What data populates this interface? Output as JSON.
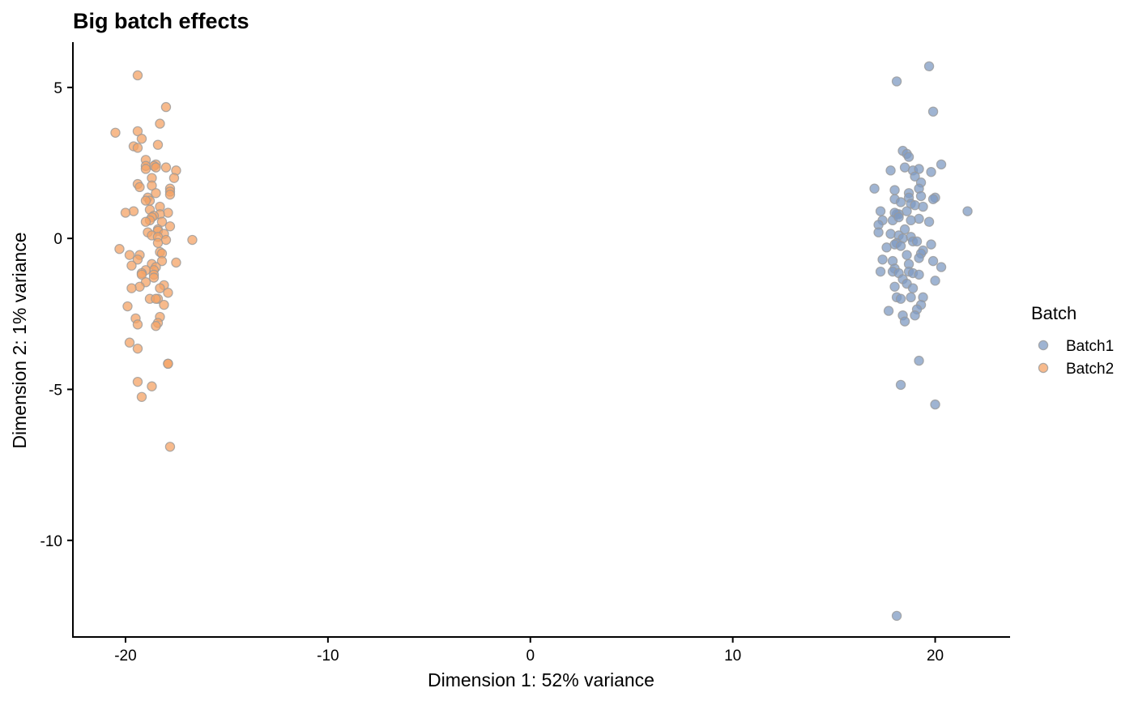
{
  "chart_data": {
    "type": "scatter",
    "title": "Big batch effects",
    "xlabel": "Dimension 1: 52% variance",
    "ylabel": "Dimension 2: 1% variance",
    "xlim": [
      -22.6,
      23.7
    ],
    "ylim": [
      -13.2,
      6.5
    ],
    "xticks": [
      -20,
      -10,
      0,
      10,
      20
    ],
    "xtick_labels": [
      "-20",
      "-10",
      "0",
      "10",
      "20"
    ],
    "yticks": [
      -10,
      -5,
      0,
      5
    ],
    "ytick_labels": [
      "-10",
      "-5",
      "0",
      "5"
    ],
    "grid": false,
    "legend": {
      "title": "Batch",
      "placement": "right"
    },
    "series": [
      {
        "name": "Batch1",
        "color": "#7F9BC3",
        "points": [
          [
            19.7,
            5.7
          ],
          [
            18.1,
            5.2
          ],
          [
            19.9,
            4.2
          ],
          [
            18.4,
            2.9
          ],
          [
            18.6,
            2.8
          ],
          [
            18.7,
            2.7
          ],
          [
            20.3,
            2.45
          ],
          [
            17.8,
            2.25
          ],
          [
            18.5,
            2.35
          ],
          [
            18.9,
            2.25
          ],
          [
            19.2,
            2.3
          ],
          [
            19.0,
            2.05
          ],
          [
            19.8,
            2.2
          ],
          [
            19.3,
            1.85
          ],
          [
            17.0,
            1.65
          ],
          [
            18.0,
            1.6
          ],
          [
            19.2,
            1.65
          ],
          [
            18.7,
            1.5
          ],
          [
            19.3,
            1.4
          ],
          [
            18.0,
            1.3
          ],
          [
            18.7,
            1.35
          ],
          [
            20.0,
            1.35
          ],
          [
            19.9,
            1.3
          ],
          [
            18.3,
            1.2
          ],
          [
            18.8,
            1.15
          ],
          [
            19.0,
            1.1
          ],
          [
            19.4,
            1.05
          ],
          [
            17.3,
            0.9
          ],
          [
            18.1,
            0.8
          ],
          [
            18.6,
            0.9
          ],
          [
            18.2,
            0.8
          ],
          [
            18.0,
            0.85
          ],
          [
            17.4,
            0.6
          ],
          [
            17.9,
            0.6
          ],
          [
            18.2,
            0.7
          ],
          [
            19.2,
            0.65
          ],
          [
            19.7,
            0.55
          ],
          [
            21.6,
            0.9
          ],
          [
            18.8,
            0.6
          ],
          [
            17.2,
            0.45
          ],
          [
            18.5,
            0.3
          ],
          [
            17.2,
            0.2
          ],
          [
            17.8,
            0.15
          ],
          [
            18.2,
            0.1
          ],
          [
            18.8,
            0.05
          ],
          [
            18.4,
            0.0
          ],
          [
            18.9,
            -0.1
          ],
          [
            19.1,
            -0.1
          ],
          [
            18.1,
            -0.15
          ],
          [
            18.0,
            -0.2
          ],
          [
            18.3,
            -0.25
          ],
          [
            17.6,
            -0.3
          ],
          [
            19.8,
            -0.2
          ],
          [
            19.4,
            -0.4
          ],
          [
            18.6,
            -0.55
          ],
          [
            19.3,
            -0.5
          ],
          [
            17.4,
            -0.7
          ],
          [
            17.9,
            -0.75
          ],
          [
            18.7,
            -0.85
          ],
          [
            19.2,
            -0.65
          ],
          [
            19.9,
            -0.75
          ],
          [
            20.3,
            -0.95
          ],
          [
            17.3,
            -1.1
          ],
          [
            18.0,
            -1.0
          ],
          [
            17.9,
            -1.1
          ],
          [
            18.2,
            -1.15
          ],
          [
            18.7,
            -1.1
          ],
          [
            18.9,
            -1.15
          ],
          [
            19.2,
            -1.2
          ],
          [
            18.4,
            -1.35
          ],
          [
            20.0,
            -1.4
          ],
          [
            18.6,
            -1.5
          ],
          [
            18.0,
            -1.6
          ],
          [
            18.9,
            -1.65
          ],
          [
            18.1,
            -1.95
          ],
          [
            19.4,
            -1.95
          ],
          [
            18.3,
            -2.0
          ],
          [
            18.8,
            -1.95
          ],
          [
            19.3,
            -2.2
          ],
          [
            19.1,
            -2.35
          ],
          [
            17.7,
            -2.4
          ],
          [
            18.4,
            -2.55
          ],
          [
            19.0,
            -2.55
          ],
          [
            18.5,
            -2.75
          ],
          [
            19.2,
            -4.05
          ],
          [
            18.3,
            -4.85
          ],
          [
            20.0,
            -5.5
          ],
          [
            18.1,
            -12.5
          ]
        ]
      },
      {
        "name": "Batch2",
        "color": "#F4A366",
        "points": [
          [
            -19.4,
            5.4
          ],
          [
            -18.0,
            4.35
          ],
          [
            -18.3,
            3.8
          ],
          [
            -19.4,
            3.55
          ],
          [
            -20.5,
            3.5
          ],
          [
            -19.2,
            3.3
          ],
          [
            -18.4,
            3.1
          ],
          [
            -19.6,
            3.05
          ],
          [
            -19.4,
            3.0
          ],
          [
            -19.0,
            2.6
          ],
          [
            -18.5,
            2.45
          ],
          [
            -18.0,
            2.35
          ],
          [
            -18.6,
            2.4
          ],
          [
            -19.0,
            2.4
          ],
          [
            -18.5,
            2.35
          ],
          [
            -19.0,
            2.3
          ],
          [
            -17.5,
            2.25
          ],
          [
            -18.7,
            2.0
          ],
          [
            -17.6,
            2.0
          ],
          [
            -19.4,
            1.8
          ],
          [
            -18.7,
            1.75
          ],
          [
            -19.3,
            1.7
          ],
          [
            -17.8,
            1.65
          ],
          [
            -17.8,
            1.55
          ],
          [
            -17.8,
            1.45
          ],
          [
            -18.5,
            1.5
          ],
          [
            -18.9,
            1.35
          ],
          [
            -18.8,
            1.25
          ],
          [
            -19.0,
            1.25
          ],
          [
            -18.3,
            1.05
          ],
          [
            -18.8,
            0.95
          ],
          [
            -19.6,
            0.9
          ],
          [
            -20.0,
            0.85
          ],
          [
            -17.9,
            0.85
          ],
          [
            -18.3,
            0.8
          ],
          [
            -18.6,
            0.75
          ],
          [
            -18.7,
            0.7
          ],
          [
            -18.8,
            0.6
          ],
          [
            -19.0,
            0.55
          ],
          [
            -18.2,
            0.55
          ],
          [
            -17.8,
            0.4
          ],
          [
            -18.4,
            0.3
          ],
          [
            -18.4,
            0.25
          ],
          [
            -18.9,
            0.2
          ],
          [
            -18.1,
            0.15
          ],
          [
            -18.7,
            0.1
          ],
          [
            -18.4,
            0.05
          ],
          [
            -18.0,
            -0.05
          ],
          [
            -16.7,
            -0.05
          ],
          [
            -18.4,
            -0.15
          ],
          [
            -20.3,
            -0.35
          ],
          [
            -18.3,
            -0.45
          ],
          [
            -18.2,
            -0.5
          ],
          [
            -19.8,
            -0.55
          ],
          [
            -19.3,
            -0.55
          ],
          [
            -19.4,
            -0.7
          ],
          [
            -18.2,
            -0.75
          ],
          [
            -17.5,
            -0.8
          ],
          [
            -18.7,
            -0.85
          ],
          [
            -19.7,
            -0.9
          ],
          [
            -18.5,
            -0.95
          ],
          [
            -18.6,
            -1.05
          ],
          [
            -19.0,
            -1.05
          ],
          [
            -19.2,
            -1.15
          ],
          [
            -18.6,
            -1.2
          ],
          [
            -19.2,
            -1.2
          ],
          [
            -18.6,
            -1.3
          ],
          [
            -19.0,
            -1.45
          ],
          [
            -18.1,
            -1.55
          ],
          [
            -19.3,
            -1.6
          ],
          [
            -19.7,
            -1.65
          ],
          [
            -18.3,
            -1.65
          ],
          [
            -17.9,
            -1.8
          ],
          [
            -18.4,
            -2.0
          ],
          [
            -18.8,
            -2.0
          ],
          [
            -18.5,
            -2.0
          ],
          [
            -18.1,
            -2.2
          ],
          [
            -19.9,
            -2.25
          ],
          [
            -18.3,
            -2.6
          ],
          [
            -19.5,
            -2.65
          ],
          [
            -18.4,
            -2.8
          ],
          [
            -19.4,
            -2.85
          ],
          [
            -18.5,
            -2.9
          ],
          [
            -19.8,
            -3.45
          ],
          [
            -19.4,
            -3.65
          ],
          [
            -17.9,
            -4.15
          ],
          [
            -17.9,
            -4.15
          ],
          [
            -19.4,
            -4.75
          ],
          [
            -18.7,
            -4.9
          ],
          [
            -19.2,
            -5.25
          ],
          [
            -17.8,
            -6.9
          ]
        ]
      }
    ]
  }
}
